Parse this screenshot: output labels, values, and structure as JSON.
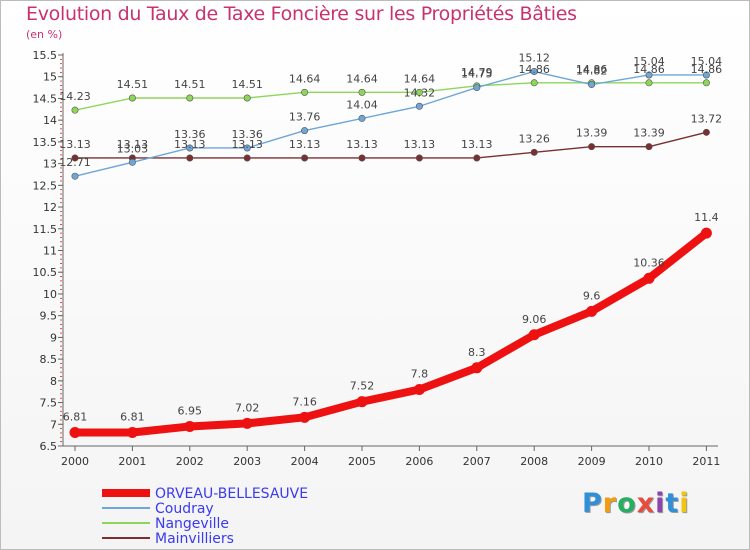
{
  "title": "Evolution du Taux de Taxe Foncière sur les Propriétés Bâties",
  "subtitle": "(en %)",
  "brand": {
    "name": "Proxiti",
    "letter_colors": [
      "#2f8fd8",
      "#f39c12",
      "#27ae60",
      "#e74c3c",
      "#8e44ad",
      "#2f8fd8",
      "#f1c40f"
    ]
  },
  "chart_data": {
    "type": "line",
    "x": [
      "2000",
      "2001",
      "2002",
      "2003",
      "2004",
      "2005",
      "2006",
      "2007",
      "2008",
      "2009",
      "2010",
      "2011"
    ],
    "ylim": [
      6.5,
      15.5
    ],
    "yticks": [
      "6.5",
      "7",
      "7.5",
      "8",
      "8.5",
      "9",
      "9.5",
      "10",
      "10.5",
      "11",
      "11.5",
      "12",
      "12.5",
      "13",
      "13.5",
      "14",
      "14.5",
      "15",
      "15.5"
    ],
    "grid": false,
    "legend_position": "bottom-left",
    "series": [
      {
        "name": "ORVEAU-BELLESAUVE",
        "color": "#ee1111",
        "values": [
          6.81,
          6.81,
          6.95,
          7.02,
          7.16,
          7.52,
          7.8,
          8.3,
          9.06,
          9.6,
          10.36,
          11.4
        ],
        "labels": [
          "6.81",
          "6.81",
          "6.95",
          "7.02",
          "7.16",
          "7.52",
          "7.8",
          "8.3",
          "9.06",
          "9.6",
          "10.36",
          "11.4"
        ]
      },
      {
        "name": "Coudray",
        "color": "#6fa6d8",
        "values": [
          12.71,
          13.03,
          13.36,
          13.36,
          13.76,
          14.04,
          14.32,
          14.75,
          15.12,
          14.82,
          15.04,
          15.04
        ],
        "labels": [
          "12.71",
          "13.03",
          "13.36",
          "13.36",
          "13.76",
          "14.04",
          "14.32",
          "14.75",
          "15.12",
          "14.82",
          "15.04",
          "15.04"
        ]
      },
      {
        "name": "Nangeville",
        "color": "#8ed65a",
        "values": [
          14.23,
          14.51,
          14.51,
          14.51,
          14.64,
          14.64,
          14.64,
          14.79,
          14.86,
          14.86,
          14.86,
          14.86
        ],
        "labels": [
          "14.23",
          "14.51",
          "14.51",
          "14.51",
          "14.64",
          "14.64",
          "14.64",
          "14.79",
          "14.86",
          "14.86",
          "14.86",
          "14.86"
        ]
      },
      {
        "name": "Mainvilliers",
        "color": "#7a3030",
        "values": [
          13.13,
          13.13,
          13.13,
          13.13,
          13.13,
          13.13,
          13.13,
          13.13,
          13.26,
          13.39,
          13.39,
          13.72
        ],
        "labels": [
          "13.13",
          "13.13",
          "13.13",
          "13.13",
          "13.13",
          "13.13",
          "13.13",
          "13.13",
          "13.26",
          "13.39",
          "13.39",
          "13.72"
        ]
      }
    ]
  }
}
